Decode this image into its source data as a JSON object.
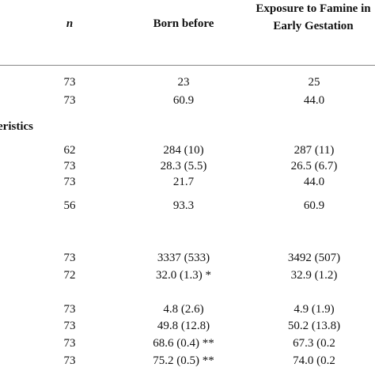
{
  "header": {
    "n": "n",
    "born_before": "Born before",
    "exposure": "Exposure to Famine in Early Gestation"
  },
  "section_label": "eristics",
  "table": {
    "rows": [
      [
        "73",
        "23",
        "25"
      ],
      [
        "73",
        "60.9",
        "44.0"
      ],
      [
        "62",
        "284 (10)",
        "287 (11)"
      ],
      [
        "73",
        "28.3 (5.5)",
        "26.5 (6.7)"
      ],
      [
        "73",
        "21.7",
        "44.0"
      ],
      [
        "56",
        "93.3",
        "60.9"
      ],
      [
        "73",
        "3337 (533)",
        "3492 (507)"
      ],
      [
        "72",
        "32.0 (1.3) *",
        "32.9 (1.2)"
      ],
      [
        "73",
        "4.8 (2.6)",
        "4.9 (1.9)"
      ],
      [
        "73",
        "49.8 (12.8)",
        "50.2 (13.8)"
      ],
      [
        "73",
        "68.6 (0.4) **",
        "67.3 (0.2"
      ],
      [
        "73",
        "75.2 (0.5) **",
        "74.0 (0.2"
      ]
    ]
  }
}
